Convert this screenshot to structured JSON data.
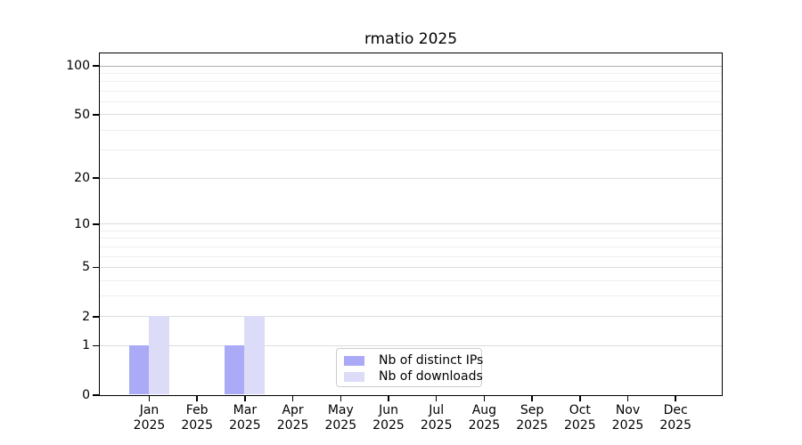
{
  "chart_data": {
    "type": "bar",
    "title": "rmatio 2025",
    "year": "2025",
    "months": [
      "Jan",
      "Feb",
      "Mar",
      "Apr",
      "May",
      "Jun",
      "Jul",
      "Aug",
      "Sep",
      "Oct",
      "Nov",
      "Dec"
    ],
    "categories": [
      "Jan 2025",
      "Feb 2025",
      "Mar 2025",
      "Apr 2025",
      "May 2025",
      "Jun 2025",
      "Jul 2025",
      "Aug 2025",
      "Sep 2025",
      "Oct 2025",
      "Nov 2025",
      "Dec 2025"
    ],
    "series": [
      {
        "name": "Nb of distinct IPs",
        "color": "#aaaaf6",
        "values": [
          1,
          0,
          1,
          0,
          0,
          0,
          0,
          0,
          0,
          0,
          0,
          0
        ]
      },
      {
        "name": "Nb of downloads",
        "color": "#dcdcf8",
        "values": [
          2,
          0,
          2,
          0,
          0,
          0,
          0,
          0,
          0,
          0,
          0,
          0
        ]
      }
    ],
    "y_scale": "log1p",
    "y_major_ticks": [
      0,
      1,
      2,
      5,
      10,
      20,
      50,
      100
    ],
    "y_minor_gridlines": [
      3,
      4,
      6,
      7,
      8,
      9,
      30,
      40,
      60,
      70,
      80,
      90
    ],
    "ylim": [
      0,
      119
    ],
    "xlabel": "",
    "ylabel": "",
    "grid": true,
    "legend": {
      "position": "lower center",
      "entries": [
        "Nb of distinct IPs",
        "Nb of downloads"
      ]
    }
  }
}
